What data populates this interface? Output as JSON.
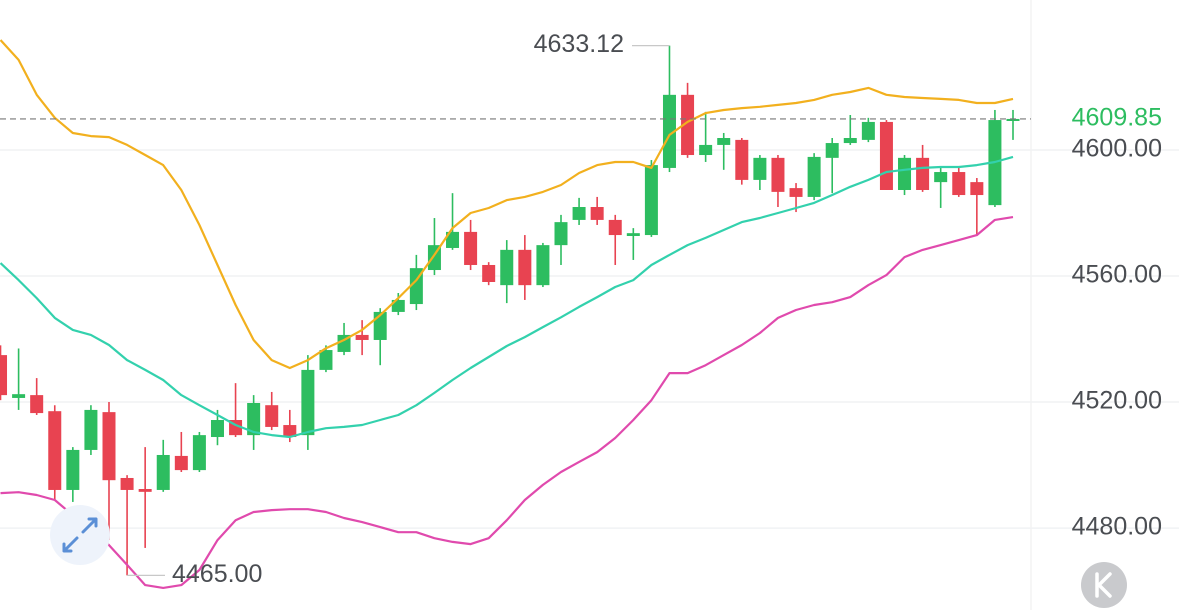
{
  "chart_data": {
    "type": "candlestick",
    "ylim": [
      4454,
      4647.6
    ],
    "yticks": [
      {
        "value": 4480,
        "label": "4480.00"
      },
      {
        "value": 4520,
        "label": "4520.00"
      },
      {
        "value": 4560,
        "label": "4560.00"
      },
      {
        "value": 4600,
        "label": "4600.00"
      }
    ],
    "grid": true,
    "up_color": "#2dbd60",
    "down_color": "#e84351",
    "ohlc": {
      "open": [
        4534.9,
        4521.3,
        4522.2,
        4517.1,
        4492.1,
        4504.8,
        4516.8,
        4495.9,
        4492.4,
        4492.1,
        4502.9,
        4498.4,
        4508.9,
        4514.3,
        4509.5,
        4519.0,
        4512.7,
        4509.5,
        4530.2,
        4535.9,
        4541.3,
        4539.7,
        4548.6,
        4551.1,
        4561.9,
        4568.9,
        4574.0,
        4563.5,
        4557.1,
        4568.3,
        4557.1,
        4569.8,
        4577.8,
        4581.9,
        4577.8,
        4572.7,
        4573.0,
        4594.3,
        4617.5,
        4598.4,
        4601.6,
        4603.2,
        4590.5,
        4597.5,
        4587.9,
        4585.1,
        4597.5,
        4602.2,
        4603.2,
        4608.9,
        4587.3,
        4597.5,
        4589.8,
        4593.0,
        4589.8,
        4582.5,
        4609.2
      ],
      "high": [
        4538.0,
        4537.0,
        4527.6,
        4519.0,
        4505.7,
        4519.0,
        4520.0,
        4496.8,
        4505.7,
        4508.0,
        4510.5,
        4510.5,
        4517.5,
        4526.0,
        4522.2,
        4523.2,
        4517.5,
        4534.9,
        4538.0,
        4545.1,
        4546.0,
        4549.8,
        4554.6,
        4566.7,
        4578.4,
        4586.3,
        4577.8,
        4564.4,
        4571.4,
        4573.0,
        4570.5,
        4579.4,
        4584.8,
        4585.1,
        4579.4,
        4575.2,
        4596.8,
        4633.12,
        4621.3,
        4612.1,
        4605.4,
        4603.8,
        4598.4,
        4598.4,
        4589.5,
        4599.0,
        4603.8,
        4611.1,
        4610.2,
        4609.5,
        4598.4,
        4601.6,
        4594.3,
        4594.3,
        4591.1,
        4612.7,
        4612.7
      ],
      "low": [
        4520.6,
        4517.5,
        4515.9,
        4488.9,
        4488.3,
        4503.2,
        4476.2,
        4465.0,
        4473.7,
        4491.5,
        4497.8,
        4497.8,
        4506.3,
        4508.9,
        4504.8,
        4511.1,
        4507.3,
        4504.8,
        4529.5,
        4534.9,
        4534.9,
        4531.7,
        4547.6,
        4549.2,
        4560.3,
        4568.3,
        4561.9,
        4557.1,
        4551.4,
        4552.4,
        4556.5,
        4563.5,
        4576.2,
        4576.2,
        4563.5,
        4565.1,
        4572.4,
        4593.0,
        4597.5,
        4596.2,
        4593.7,
        4589.0,
        4587.3,
        4581.9,
        4580.3,
        4584.1,
        4586.3,
        4601.6,
        4602.5,
        4587.3,
        4585.7,
        4586.7,
        4581.6,
        4585.1,
        4573.0,
        4581.9,
        4603.2
      ],
      "close": [
        4522.2,
        4522.5,
        4516.5,
        4492.1,
        4504.8,
        4517.5,
        4495.2,
        4492.1,
        4491.5,
        4503.2,
        4498.4,
        4509.5,
        4514.3,
        4509.5,
        4519.7,
        4512.1,
        4508.9,
        4530.2,
        4536.5,
        4541.3,
        4539.7,
        4548.6,
        4552.4,
        4562.5,
        4569.8,
        4574.0,
        4563.5,
        4558.1,
        4568.3,
        4557.1,
        4569.8,
        4577.1,
        4581.9,
        4577.8,
        4573.0,
        4573.6,
        4595.2,
        4617.5,
        4598.4,
        4601.6,
        4603.8,
        4590.5,
        4597.5,
        4586.7,
        4585.1,
        4597.8,
        4602.2,
        4603.8,
        4608.9,
        4587.3,
        4597.5,
        4587.3,
        4593.0,
        4585.7,
        4585.7,
        4609.5,
        4609.85
      ]
    },
    "series": [
      {
        "color": "#f2b01e",
        "values": [
          4634.9,
          4628.6,
          4617.5,
          4610.2,
          4605.4,
          4604.4,
          4604.1,
          4601.6,
          4598.4,
          4595.2,
          4587.3,
          4576.2,
          4563.5,
          4550.8,
          4539.7,
          4533.3,
          4530.8,
          4533.3,
          4537.1,
          4539.7,
          4542.9,
          4547.6,
          4553.0,
          4558.7,
          4566.7,
          4575.2,
          4580.0,
          4581.6,
          4584.1,
          4585.1,
          4586.7,
          4588.9,
          4592.7,
          4595.2,
          4596.2,
          4596.2,
          4594.3,
          4604.8,
          4608.9,
          4611.7,
          4612.7,
          4613.3,
          4613.7,
          4614.3,
          4614.9,
          4615.9,
          4617.5,
          4618.4,
          4619.7,
          4617.5,
          4616.8,
          4616.5,
          4616.2,
          4615.9,
          4614.9,
          4614.9,
          4616.2
        ]
      },
      {
        "color": "#33d1ad",
        "values": [
          4564.1,
          4558.7,
          4553.0,
          4546.7,
          4542.9,
          4541.3,
          4538.1,
          4533.3,
          4530.2,
          4527.0,
          4522.2,
          4519.0,
          4515.9,
          4512.7,
          4510.5,
          4509.5,
          4508.9,
          4510.5,
          4511.7,
          4512.1,
          4512.7,
          4514.3,
          4515.9,
          4519.0,
          4522.9,
          4527.0,
          4530.8,
          4534.3,
          4537.8,
          4540.6,
          4543.8,
          4546.9,
          4550.2,
          4553.3,
          4556.5,
          4558.7,
          4563.5,
          4566.7,
          4569.8,
          4572.1,
          4574.6,
          4577.1,
          4578.4,
          4580.0,
          4581.6,
          4583.2,
          4585.7,
          4588.3,
          4590.5,
          4593.0,
          4593.7,
          4594.3,
          4594.6,
          4594.6,
          4595.2,
          4596.2,
          4597.8
        ]
      },
      {
        "color": "#e04aad",
        "values": [
          4491.1,
          4491.4,
          4490.5,
          4488.9,
          4484.1,
          4480.0,
          4474.6,
          4468.3,
          4461.9,
          4461.0,
          4461.9,
          4466.7,
          4476.2,
          4482.5,
          4485.1,
          4485.7,
          4486.0,
          4486.0,
          4485.1,
          4483.2,
          4481.9,
          4480.3,
          4478.7,
          4478.7,
          4476.8,
          4475.6,
          4474.9,
          4476.8,
          4482.5,
          4488.9,
          4493.7,
          4497.8,
          4501.0,
          4504.1,
          4508.6,
          4514.3,
          4520.6,
          4529.2,
          4529.2,
          4531.7,
          4534.9,
          4538.1,
          4541.9,
          4546.7,
          4549.2,
          4550.8,
          4551.7,
          4553.3,
          4557.1,
          4560.3,
          4566.0,
          4568.3,
          4569.8,
          4571.4,
          4573.0,
          4577.8,
          4578.7
        ]
      }
    ],
    "last_price": {
      "value": 4609.85,
      "label": "4609.85",
      "color": "#2dbd60"
    },
    "max_annotation": {
      "value": 4633.12,
      "label": "4633.12"
    },
    "min_annotation": {
      "value": 4465.0,
      "label": "4465.00"
    }
  }
}
